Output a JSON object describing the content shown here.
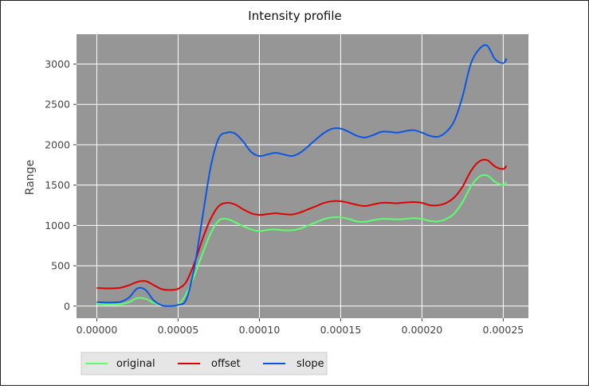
{
  "chart_data": {
    "type": "line",
    "title": "Intensity profile",
    "xlabel": "",
    "ylabel": "Range",
    "xlim": [
      -1.25e-05,
      0.0002655
    ],
    "ylim": [
      -150,
      3370
    ],
    "x_ticks": [
      0,
      5e-05,
      0.0001,
      0.00015,
      0.0002,
      0.00025
    ],
    "x_tick_labels": [
      "0.00000",
      "0.00005",
      "0.00010",
      "0.00015",
      "0.00020",
      "0.00025"
    ],
    "y_ticks": [
      0,
      500,
      1000,
      1500,
      2000,
      2500,
      3000
    ],
    "y_tick_labels": [
      "0",
      "500",
      "1000",
      "1500",
      "2000",
      "2500",
      "3000"
    ],
    "grid": true,
    "legend_position": "bottom-left, below plot",
    "colors": {
      "plot_background": "#969696",
      "grid": "#ffffff",
      "original": "#5cff6e",
      "offset": "#e00000",
      "slope": "#0a55e6"
    },
    "x": [
      0,
      5e-06,
      1e-05,
      1.5e-05,
      2e-05,
      2.5e-05,
      3e-05,
      3.5e-05,
      4e-05,
      4.5e-05,
      5e-05,
      5.5e-05,
      6e-05,
      6.5e-05,
      7e-05,
      7.5e-05,
      8e-05,
      8.5e-05,
      9e-05,
      9.5e-05,
      0.0001,
      0.000105,
      0.00011,
      0.000115,
      0.00012,
      0.000125,
      0.00013,
      0.000135,
      0.00014,
      0.000145,
      0.00015,
      0.000155,
      0.00016,
      0.000165,
      0.00017,
      0.000175,
      0.00018,
      0.000185,
      0.00019,
      0.000195,
      0.0002,
      0.000205,
      0.00021,
      0.000215,
      0.00022,
      0.000225,
      0.00023,
      0.000235,
      0.00024,
      0.000245,
      0.00025,
      0.000252
    ],
    "series": [
      {
        "name": "original",
        "values": [
          30,
          20,
          20,
          25,
          50,
          100,
          90,
          40,
          10,
          0,
          20,
          150,
          380,
          650,
          900,
          1060,
          1080,
          1040,
          990,
          950,
          930,
          945,
          950,
          940,
          940,
          960,
          1000,
          1040,
          1080,
          1100,
          1100,
          1080,
          1050,
          1045,
          1065,
          1080,
          1080,
          1075,
          1080,
          1090,
          1080,
          1055,
          1050,
          1080,
          1150,
          1290,
          1480,
          1600,
          1620,
          1540,
          1500,
          1540
        ]
      },
      {
        "name": "offset",
        "values": [
          225,
          220,
          220,
          230,
          260,
          300,
          310,
          260,
          210,
          200,
          215,
          300,
          530,
          830,
          1080,
          1240,
          1280,
          1260,
          1200,
          1150,
          1130,
          1140,
          1150,
          1140,
          1135,
          1160,
          1200,
          1240,
          1280,
          1300,
          1300,
          1280,
          1255,
          1240,
          1260,
          1280,
          1280,
          1275,
          1285,
          1290,
          1280,
          1250,
          1250,
          1280,
          1350,
          1480,
          1670,
          1790,
          1810,
          1730,
          1700,
          1740
        ]
      },
      {
        "name": "slope",
        "values": [
          50,
          45,
          45,
          55,
          110,
          220,
          200,
          70,
          10,
          0,
          15,
          80,
          480,
          1100,
          1720,
          2080,
          2150,
          2140,
          2040,
          1910,
          1860,
          1880,
          1900,
          1880,
          1860,
          1900,
          1980,
          2070,
          2150,
          2200,
          2200,
          2160,
          2110,
          2090,
          2120,
          2160,
          2160,
          2150,
          2170,
          2180,
          2150,
          2110,
          2100,
          2160,
          2300,
          2600,
          3000,
          3180,
          3230,
          3060,
          3010,
          3070
        ]
      }
    ]
  }
}
